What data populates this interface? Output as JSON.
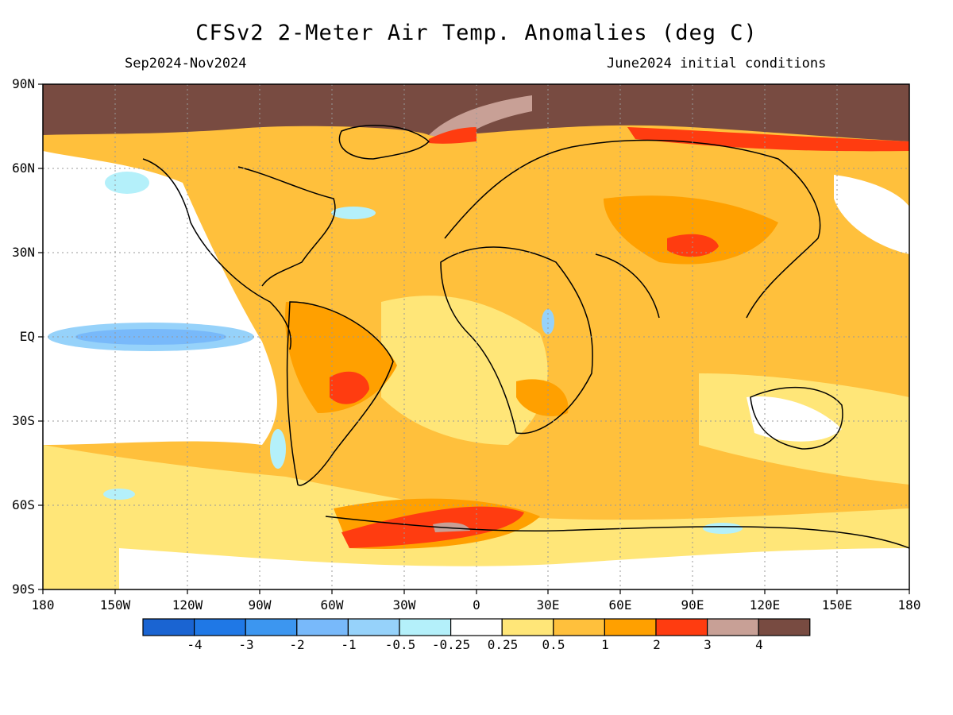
{
  "header": {
    "title": "CFSv2 2-Meter Air Temp. Anomalies (deg C)",
    "period": "Sep2024-Nov2024",
    "initial_conditions": "June2024 initial conditions"
  },
  "axes": {
    "lat_labels": [
      "90N",
      "60N",
      "30N",
      "EQ",
      "30S",
      "60S",
      "90S"
    ],
    "lon_labels": [
      "180",
      "150W",
      "120W",
      "90W",
      "60W",
      "30W",
      "0",
      "30E",
      "60E",
      "90E",
      "120E",
      "150E",
      "180"
    ],
    "lon_range": [
      -180,
      180
    ],
    "lat_range": [
      -90,
      90
    ],
    "grid": "dotted"
  },
  "colorbar": {
    "labels": [
      "-4",
      "-3",
      "-2",
      "-1",
      "-0.5",
      "-0.25",
      "0.25",
      "0.5",
      "1",
      "2",
      "3",
      "4"
    ],
    "colors": [
      "#1a64d2",
      "#1f78e6",
      "#3c96f0",
      "#78b9fa",
      "#96d2fa",
      "#b4f0fa",
      "#ffffff",
      "#ffe678",
      "#ffc03c",
      "#ffa000",
      "#ff3c10",
      "#c8a096",
      "#784b41"
    ]
  },
  "colors": {
    "background": "#ffffff",
    "map_border": "#000000",
    "warm_base": "#ffc03c"
  },
  "regions": [
    {
      "name": "arctic-extreme-warm",
      "color": "#784b41"
    },
    {
      "name": "north-atlantic-pink",
      "color": "#c8a096"
    },
    {
      "name": "siberia-coast-red",
      "color": "#ff3c10"
    },
    {
      "name": "tibet-red",
      "color": "#ff3c10"
    },
    {
      "name": "south-america-red",
      "color": "#ff3c10"
    },
    {
      "name": "southern-ocean-red",
      "color": "#ff3c10"
    },
    {
      "name": "equatorial-pacific-cool",
      "color": "#78b9fa"
    }
  ]
}
